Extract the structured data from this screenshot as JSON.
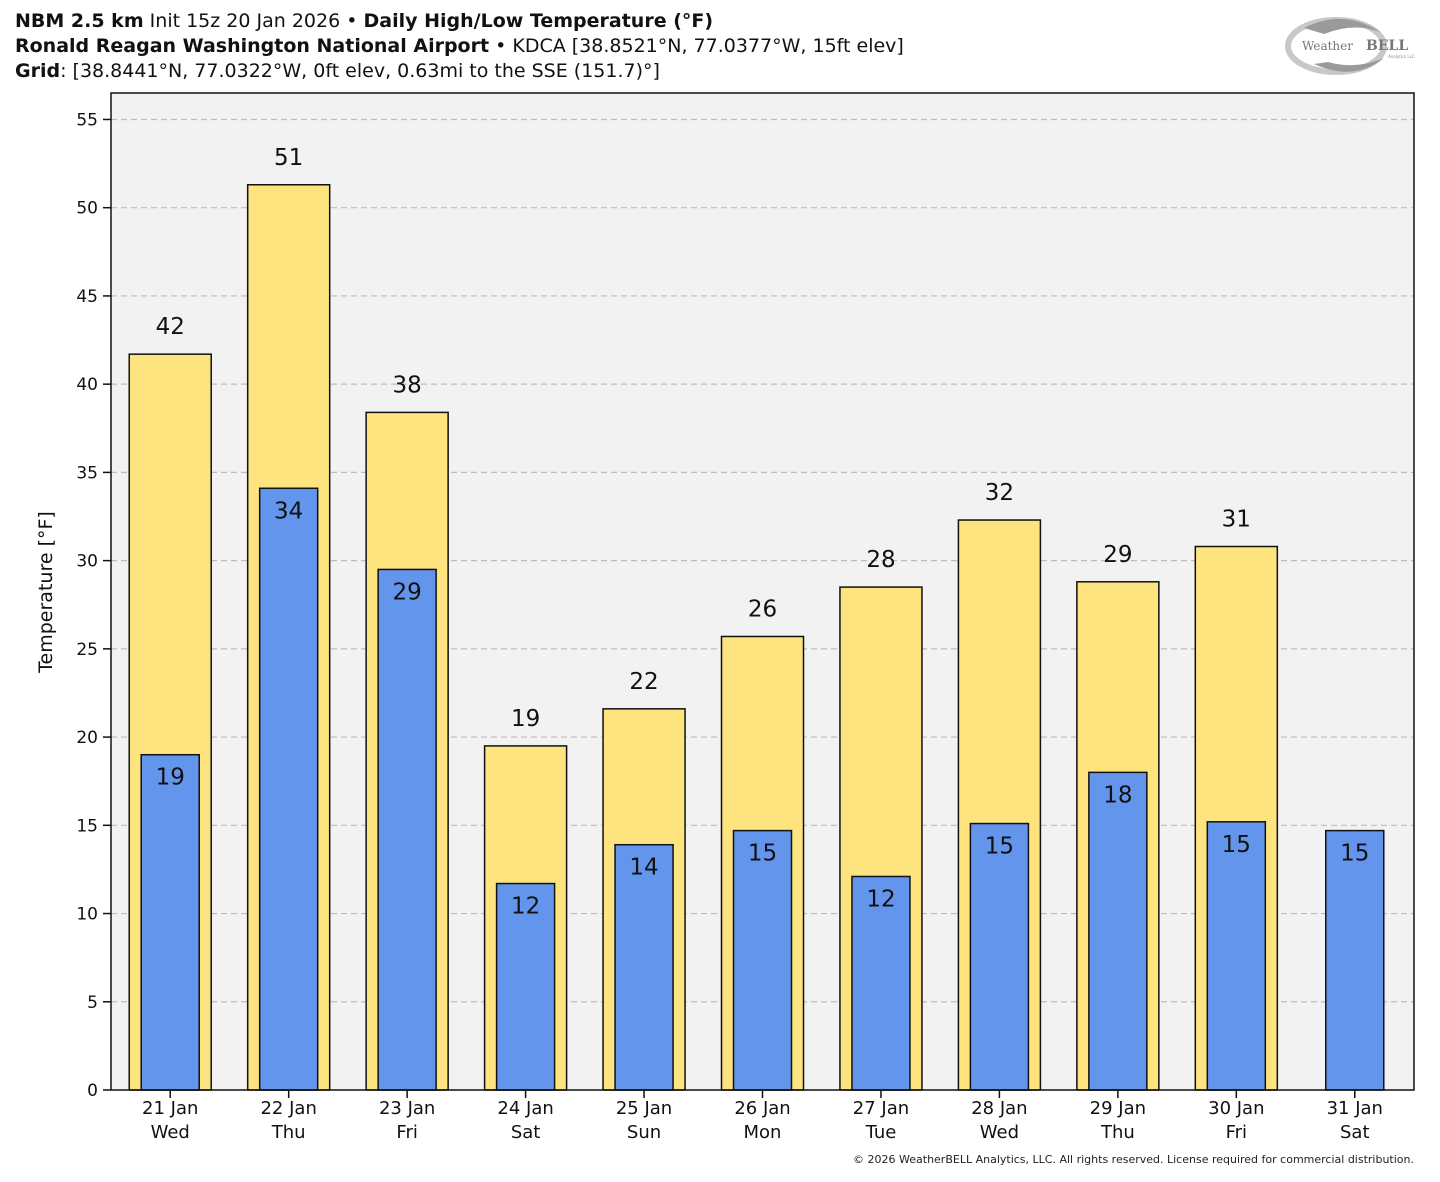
{
  "header": {
    "model": "NBM 2.5 km",
    "init": "Init 15z 20 Jan 2026",
    "bullet": "•",
    "product": "Daily High/Low Temperature (°F)",
    "station_name": "Ronald Reagan Washington National Airport",
    "station_info": "KDCA [38.8521°N, 77.0377°W, 15ft elev]",
    "grid_label": "Grid",
    "grid_info": ": [38.8441°N, 77.0322°W, 0ft elev, 0.63mi to the SSE (151.7)°]"
  },
  "logo": {
    "text_a": "Weather",
    "text_b": "BELL",
    "sub": "Analytics LLC"
  },
  "copyright": "© 2026 WeatherBELL Analytics, LLC. All rights reserved. License required for commercial distribution.",
  "colors": {
    "high": "#fde47f",
    "low": "#6495ed",
    "plot_bg": "#f2f2f2",
    "grid": "#bdbdbd"
  },
  "chart_data": {
    "type": "bar",
    "ylabel": "Temperature [°F]",
    "ylim": [
      0,
      56.5
    ],
    "yticks": [
      0,
      5,
      10,
      15,
      20,
      25,
      30,
      35,
      40,
      45,
      50,
      55
    ],
    "grid": true,
    "categories": [
      {
        "date": "21 Jan",
        "day": "Wed"
      },
      {
        "date": "22 Jan",
        "day": "Thu"
      },
      {
        "date": "23 Jan",
        "day": "Fri"
      },
      {
        "date": "24 Jan",
        "day": "Sat"
      },
      {
        "date": "25 Jan",
        "day": "Sun"
      },
      {
        "date": "26 Jan",
        "day": "Mon"
      },
      {
        "date": "27 Jan",
        "day": "Tue"
      },
      {
        "date": "28 Jan",
        "day": "Wed"
      },
      {
        "date": "29 Jan",
        "day": "Thu"
      },
      {
        "date": "30 Jan",
        "day": "Fri"
      },
      {
        "date": "31 Jan",
        "day": "Sat"
      }
    ],
    "series": [
      {
        "name": "High",
        "values": [
          41.7,
          51.3,
          38.4,
          19.5,
          21.6,
          25.7,
          28.5,
          32.3,
          28.8,
          30.8,
          null
        ],
        "labels": [
          "42",
          "51",
          "38",
          "19",
          "22",
          "26",
          "28",
          "32",
          "29",
          "31",
          ""
        ]
      },
      {
        "name": "Low",
        "values": [
          19.0,
          34.1,
          29.5,
          11.7,
          13.9,
          14.7,
          12.1,
          15.1,
          18.0,
          15.2,
          14.7
        ],
        "labels": [
          "19",
          "34",
          "29",
          "12",
          "14",
          "15",
          "12",
          "15",
          "18",
          "15",
          "15"
        ]
      }
    ]
  }
}
